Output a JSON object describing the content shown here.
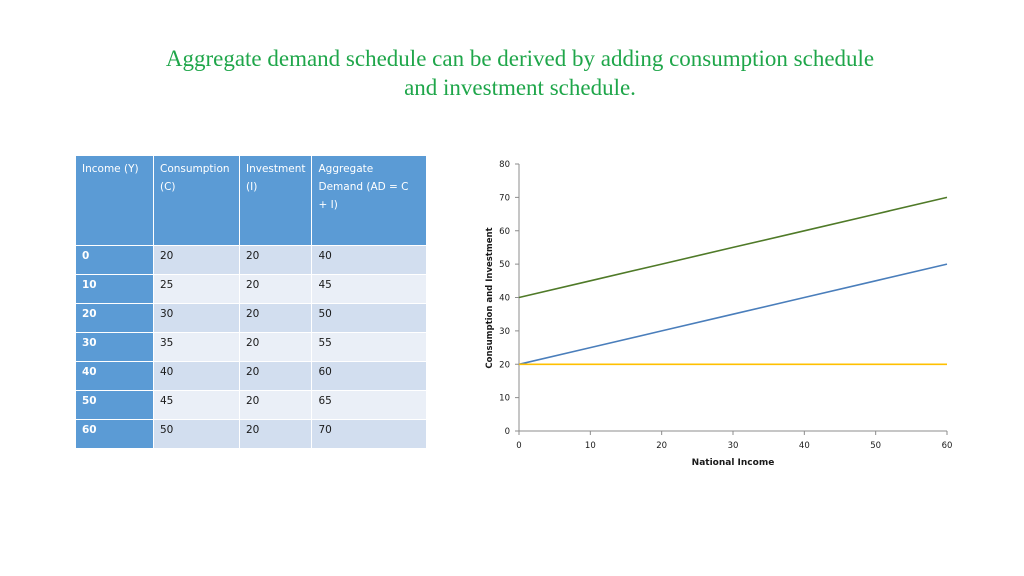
{
  "title": "Aggregate demand schedule can be derived by adding consumption schedule and investment schedule.",
  "table": {
    "headers": [
      "Income (Y)",
      "Consumption (C)",
      "Investment (I)",
      "Aggregate Demand (AD = C + I)"
    ],
    "rows": [
      [
        "0",
        "20",
        "20",
        "40"
      ],
      [
        "10",
        "25",
        "20",
        "45"
      ],
      [
        "20",
        "30",
        "20",
        "50"
      ],
      [
        "30",
        "35",
        "20",
        "55"
      ],
      [
        "40",
        "40",
        "20",
        "60"
      ],
      [
        "50",
        "45",
        "20",
        "65"
      ],
      [
        "60",
        "50",
        "20",
        "70"
      ]
    ]
  },
  "chart_data": {
    "type": "line",
    "xlabel": "National Income",
    "ylabel": "Consumption and Investment",
    "xlim": [
      0,
      60
    ],
    "ylim": [
      0,
      80
    ],
    "xticks": [
      0,
      10,
      20,
      30,
      40,
      50,
      60
    ],
    "yticks": [
      0,
      10,
      20,
      30,
      40,
      50,
      60,
      70,
      80
    ],
    "grid": false,
    "x": [
      0,
      10,
      20,
      30,
      40,
      50,
      60
    ],
    "series": [
      {
        "values": [
          20,
          25,
          30,
          35,
          40,
          45,
          50
        ],
        "color": "#4a7ebb"
      },
      {
        "values": [
          20,
          20,
          20,
          20,
          20,
          20,
          20
        ],
        "color": "#ffc000"
      },
      {
        "values": [
          40,
          45,
          50,
          55,
          60,
          65,
          70
        ],
        "color": "#4f7a28"
      }
    ]
  }
}
